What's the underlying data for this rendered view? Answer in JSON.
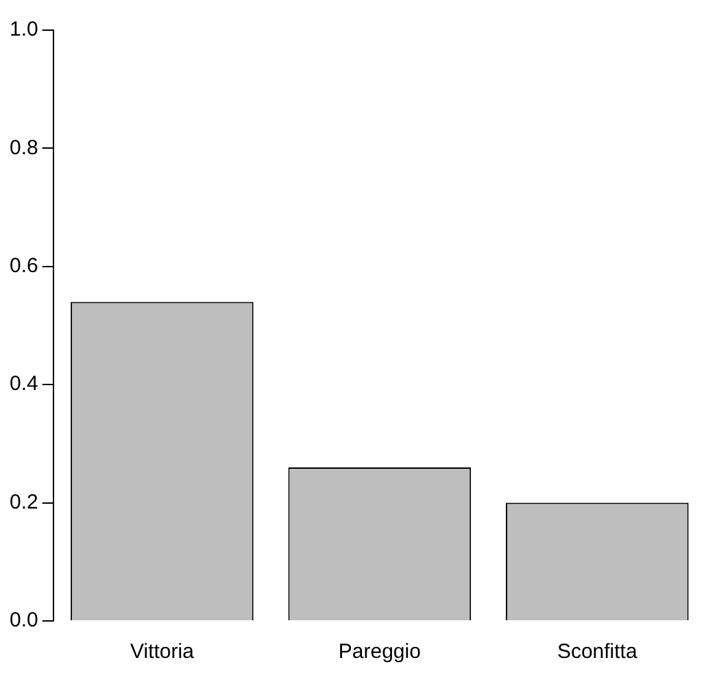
{
  "chart_data": {
    "type": "bar",
    "categories": [
      "Vittoria",
      "Pareggio",
      "Sconfitta"
    ],
    "values": [
      0.54,
      0.26,
      0.2
    ],
    "color": "#bebebe",
    "ylim": [
      0,
      1
    ],
    "yticks": [
      {
        "value": 0,
        "label": "0.0"
      },
      {
        "value": 0.2,
        "label": "0.2"
      },
      {
        "value": 0.4,
        "label": "0.4"
      },
      {
        "value": 0.6,
        "label": "0.6"
      },
      {
        "value": 0.8,
        "label": "0.8"
      },
      {
        "value": 1,
        "label": "1.0"
      }
    ],
    "grid": false,
    "legend": false
  }
}
